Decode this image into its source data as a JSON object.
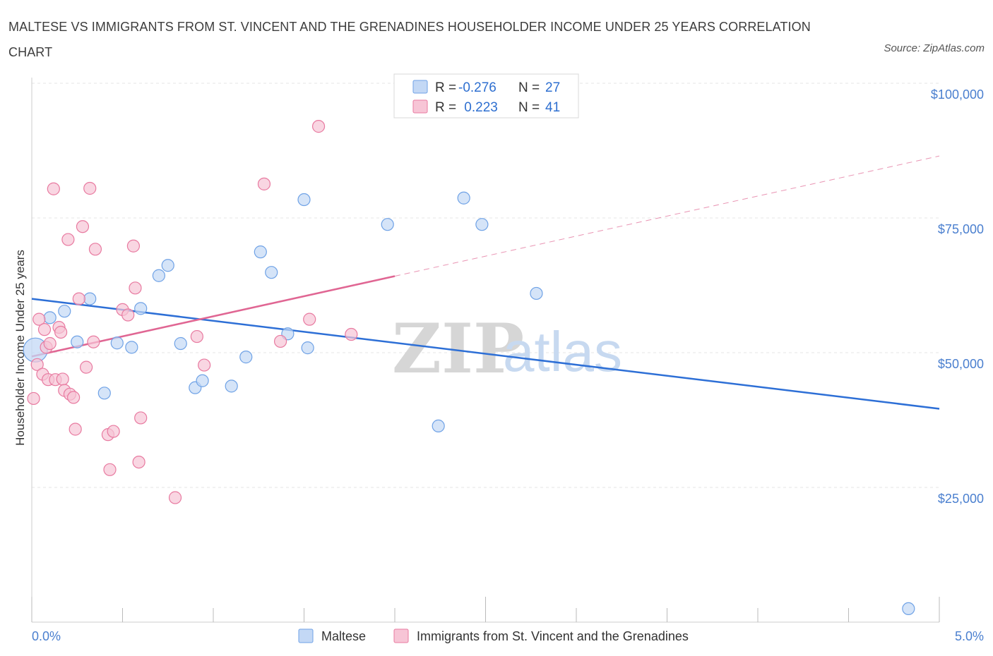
{
  "title": "MALTESE VS IMMIGRANTS FROM ST. VINCENT AND THE GRENADINES HOUSEHOLDER INCOME UNDER 25 YEARS CORRELATION CHART",
  "source": "Source: ZipAtlas.com",
  "colors": {
    "maltese": "#6fa2e6",
    "maltese_fill": "#c3d8f5",
    "stvincent": "#e87aa0",
    "stvincent_fill": "#f7c5d6",
    "blue_line": "#2d6fd6",
    "pink_line": "#e06693",
    "tick_blue": "#4a7fcf"
  },
  "chart_data": {
    "type": "scatter",
    "title": "MALTESE VS IMMIGRANTS FROM ST. VINCENT AND THE GRENADINES HOUSEHOLDER INCOME UNDER 25 YEARS CORRELATION CHART",
    "xlabel": "",
    "ylabel": "Householder Income Under 25 years",
    "xlim": [
      0,
      5
    ],
    "ylim": [
      0,
      100000
    ],
    "x_tick_labels": [
      "0.0%",
      "5.0%"
    ],
    "y_ticks": [
      25000,
      50000,
      75000,
      100000
    ],
    "y_tick_labels": [
      "$25,000",
      "$50,000",
      "$75,000",
      "$100,000"
    ],
    "grid": true,
    "legend_position": "top-center",
    "legend": [
      {
        "r_label": "R =",
        "r_value": "-0.276",
        "n_label": "N =",
        "n_value": "27"
      },
      {
        "r_label": "R =",
        "r_value": " 0.223",
        "n_label": "N =",
        "n_value": "41"
      }
    ],
    "series": [
      {
        "name": "Maltese",
        "points": [
          {
            "x": 0.02,
            "y": 50500
          },
          {
            "x": 0.1,
            "y": 56500
          },
          {
            "x": 0.18,
            "y": 57700
          },
          {
            "x": 0.25,
            "y": 52000
          },
          {
            "x": 0.32,
            "y": 60000
          },
          {
            "x": 0.4,
            "y": 42500
          },
          {
            "x": 0.47,
            "y": 51800
          },
          {
            "x": 0.55,
            "y": 51000
          },
          {
            "x": 0.6,
            "y": 58200
          },
          {
            "x": 0.7,
            "y": 64300
          },
          {
            "x": 0.75,
            "y": 66200
          },
          {
            "x": 0.82,
            "y": 51700
          },
          {
            "x": 0.9,
            "y": 43500
          },
          {
            "x": 0.94,
            "y": 44800
          },
          {
            "x": 1.1,
            "y": 43800
          },
          {
            "x": 1.18,
            "y": 49200
          },
          {
            "x": 1.26,
            "y": 68700
          },
          {
            "x": 1.32,
            "y": 64900
          },
          {
            "x": 1.41,
            "y": 53500
          },
          {
            "x": 1.5,
            "y": 78400
          },
          {
            "x": 1.52,
            "y": 50900
          },
          {
            "x": 1.96,
            "y": 73800
          },
          {
            "x": 2.24,
            "y": 36400
          },
          {
            "x": 2.38,
            "y": 78700
          },
          {
            "x": 2.48,
            "y": 73800
          },
          {
            "x": 2.78,
            "y": 61000
          },
          {
            "x": 4.83,
            "y": 2500
          }
        ]
      },
      {
        "name": "Immigrants from St. Vincent and the Grenadines",
        "points": [
          {
            "x": 0.01,
            "y": 41500
          },
          {
            "x": 0.03,
            "y": 47800
          },
          {
            "x": 0.04,
            "y": 56200
          },
          {
            "x": 0.06,
            "y": 46000
          },
          {
            "x": 0.07,
            "y": 54300
          },
          {
            "x": 0.08,
            "y": 51000
          },
          {
            "x": 0.09,
            "y": 45000
          },
          {
            "x": 0.1,
            "y": 51700
          },
          {
            "x": 0.12,
            "y": 80400
          },
          {
            "x": 0.13,
            "y": 45000
          },
          {
            "x": 0.15,
            "y": 54700
          },
          {
            "x": 0.16,
            "y": 53800
          },
          {
            "x": 0.17,
            "y": 45100
          },
          {
            "x": 0.18,
            "y": 43000
          },
          {
            "x": 0.2,
            "y": 71000
          },
          {
            "x": 0.21,
            "y": 42300
          },
          {
            "x": 0.23,
            "y": 41700
          },
          {
            "x": 0.24,
            "y": 35800
          },
          {
            "x": 0.26,
            "y": 60000
          },
          {
            "x": 0.28,
            "y": 73400
          },
          {
            "x": 0.3,
            "y": 47300
          },
          {
            "x": 0.32,
            "y": 80500
          },
          {
            "x": 0.34,
            "y": 52000
          },
          {
            "x": 0.35,
            "y": 69200
          },
          {
            "x": 0.42,
            "y": 34800
          },
          {
            "x": 0.43,
            "y": 28300
          },
          {
            "x": 0.45,
            "y": 35400
          },
          {
            "x": 0.5,
            "y": 58000
          },
          {
            "x": 0.53,
            "y": 57000
          },
          {
            "x": 0.56,
            "y": 69800
          },
          {
            "x": 0.57,
            "y": 62000
          },
          {
            "x": 0.59,
            "y": 29700
          },
          {
            "x": 0.6,
            "y": 37900
          },
          {
            "x": 0.79,
            "y": 23100
          },
          {
            "x": 0.91,
            "y": 53000
          },
          {
            "x": 0.95,
            "y": 47700
          },
          {
            "x": 1.28,
            "y": 81300
          },
          {
            "x": 1.37,
            "y": 52100
          },
          {
            "x": 1.53,
            "y": 56200
          },
          {
            "x": 1.58,
            "y": 92000
          },
          {
            "x": 1.76,
            "y": 53400
          }
        ]
      }
    ],
    "trend_lines": [
      {
        "series": "Maltese",
        "x": [
          0,
          5
        ],
        "y": [
          60000,
          39600
        ],
        "style": "solid"
      },
      {
        "series": "Immigrants from St. Vincent and the Grenadines",
        "x": [
          0,
          2.0
        ],
        "y": [
          49300,
          64200
        ],
        "style": "solid"
      },
      {
        "series": "Immigrants from St. Vincent and the Grenadines",
        "x": [
          2.0,
          5
        ],
        "y": [
          64200,
          86500
        ],
        "style": "dashed"
      }
    ]
  },
  "bottom_legend": [
    {
      "label": "Maltese"
    },
    {
      "label": "Immigrants from St. Vincent and the Grenadines"
    }
  ],
  "watermark": {
    "zip": "ZIP",
    "atlas": "atlas"
  }
}
